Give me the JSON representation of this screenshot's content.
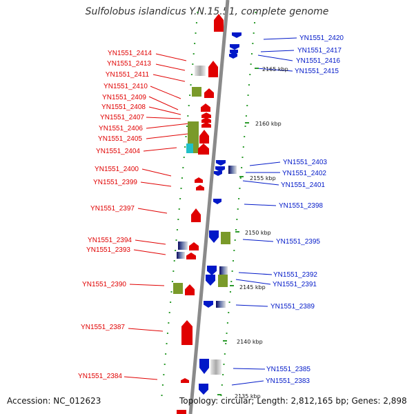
{
  "title": "Sulfolobus islandicus Y.N.15.51, complete genome",
  "footer": {
    "accession": "Accession: NC_012623",
    "topology": "Topology: circular; Length: 2,812,165 bp; Genes: 2,898"
  },
  "ticks": [
    "2165 kbp",
    "2160 kbp",
    "2155 kbp",
    "2150 kbp",
    "2145 kbp",
    "2140 kbp",
    "2135 kbp"
  ],
  "genes_left": [
    "YN1551_2414",
    "YN1551_2413",
    "YN1551_2411",
    "YN1551_2410",
    "YN1551_2409",
    "YN1551_2408",
    "YN1551_2407",
    "YN1551_2406",
    "YN1551_2405",
    "YN1551_2404",
    "YN1551_2400",
    "YN1551_2399",
    "YN1551_2397",
    "YN1551_2394",
    "YN1551_2393",
    "YN1551_2390",
    "YN1551_2387",
    "YN1551_2384"
  ],
  "genes_right": [
    "YN1551_2420",
    "YN1551_2417",
    "YN1551_2416",
    "YN1551_2415",
    "YN1551_2403",
    "YN1551_2402",
    "YN1551_2401",
    "YN1551_2398",
    "YN1551_2395",
    "YN1551_2392",
    "YN1551_2391",
    "YN1551_2389",
    "YN1551_2385",
    "YN1551_2383"
  ],
  "colors": {
    "forward": "#e00000",
    "reverse": "#0018c8",
    "backbone": "#8a8a8a",
    "tick": "#2a9a2a",
    "olive": "#7a9a2a",
    "cyan": "#20c0c8"
  }
}
